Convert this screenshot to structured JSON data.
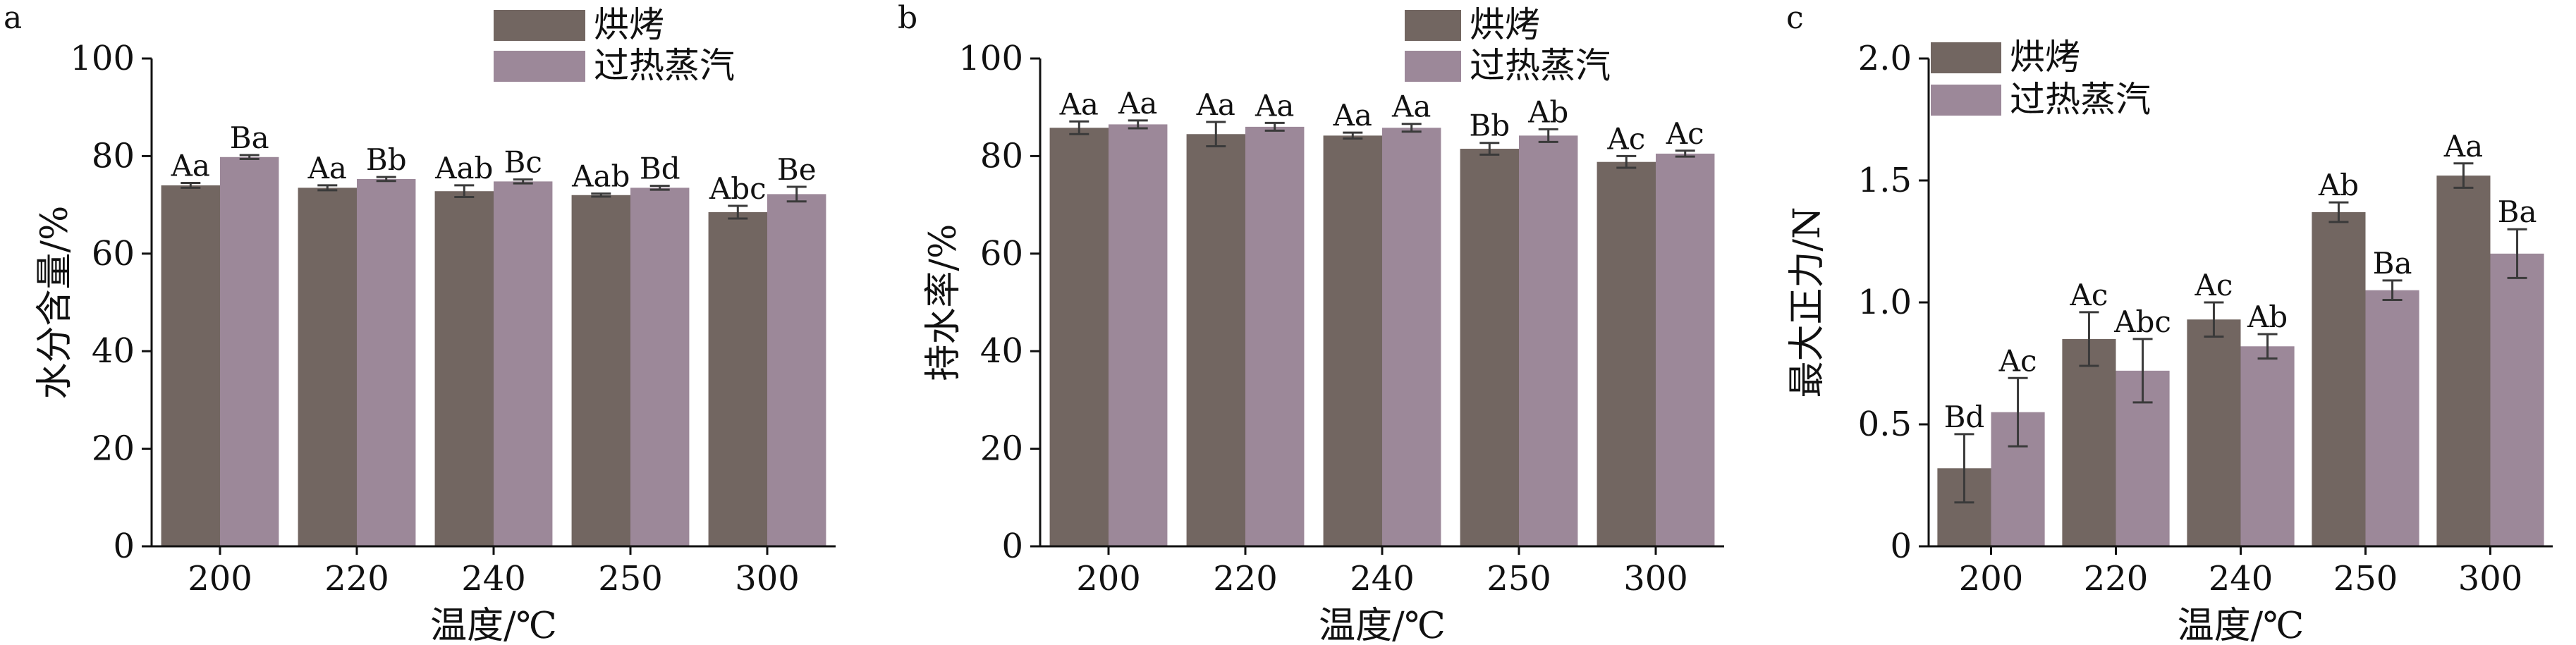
{
  "colors": {
    "bake": "#726661",
    "steam": "#9c8899",
    "axis": "#111111",
    "error": "#3a3a3a"
  },
  "chart_data": [
    {
      "panel": "a",
      "type": "bar",
      "ylabel": "水分含量/%",
      "xlabel": "温度/℃",
      "categories": [
        "200",
        "220",
        "240",
        "250",
        "300"
      ],
      "ylim": [
        0,
        100
      ],
      "yticks": [
        "0",
        "20",
        "40",
        "60",
        "80",
        "100"
      ],
      "legend_position": "top-right",
      "series": [
        {
          "name": "烘烤",
          "values": [
            74,
            73.5,
            72.8,
            72,
            68.5
          ],
          "errors": [
            0.5,
            0.5,
            1.2,
            0.3,
            1.3
          ],
          "labels": [
            "Aa",
            "Aa",
            "Aab",
            "Aab",
            "Abc"
          ]
        },
        {
          "name": "过热蒸汽",
          "values": [
            79.8,
            75.3,
            74.8,
            73.5,
            72.2
          ],
          "errors": [
            0.4,
            0.4,
            0.4,
            0.4,
            1.5
          ],
          "labels": [
            "Ba",
            "Bb",
            "Bc",
            "Bd",
            "Be"
          ]
        }
      ]
    },
    {
      "panel": "b",
      "type": "bar",
      "ylabel": "持水率/%",
      "xlabel": "温度/℃",
      "categories": [
        "200",
        "220",
        "240",
        "250",
        "300"
      ],
      "ylim": [
        0,
        100
      ],
      "yticks": [
        "0",
        "20",
        "40",
        "60",
        "80",
        "100"
      ],
      "legend_position": "top-right",
      "series": [
        {
          "name": "烘烤",
          "values": [
            85.8,
            84.5,
            84.2,
            81.5,
            78.8
          ],
          "errors": [
            1.3,
            2.5,
            0.6,
            1.2,
            1.2
          ],
          "labels": [
            "Aa",
            "Aa",
            "Aa",
            "Bb",
            "Ac"
          ]
        },
        {
          "name": "过热蒸汽",
          "values": [
            86.5,
            86,
            85.8,
            84.2,
            80.5
          ],
          "errors": [
            0.8,
            0.8,
            0.8,
            1.3,
            0.6
          ],
          "labels": [
            "Aa",
            "Aa",
            "Aa",
            "Ab",
            "Ac"
          ]
        }
      ]
    },
    {
      "panel": "c",
      "type": "bar",
      "ylabel": "最大正力/N",
      "xlabel": "温度/℃",
      "categories": [
        "200",
        "220",
        "240",
        "250",
        "300"
      ],
      "ylim": [
        0,
        2.0
      ],
      "yticks": [
        "0",
        "0.5",
        "1.0",
        "1.5",
        "2.0"
      ],
      "legend_position": "top-left",
      "series": [
        {
          "name": "烘烤",
          "values": [
            0.32,
            0.85,
            0.93,
            1.37,
            1.52
          ],
          "errors": [
            0.14,
            0.11,
            0.07,
            0.04,
            0.05
          ],
          "labels": [
            "Bd",
            "Ac",
            "Ac",
            "Ab",
            "Aa"
          ]
        },
        {
          "name": "过热蒸汽",
          "values": [
            0.55,
            0.72,
            0.82,
            1.05,
            1.2
          ],
          "errors": [
            0.14,
            0.13,
            0.05,
            0.04,
            0.1
          ],
          "labels": [
            "Ac",
            "Abc",
            "Ab",
            "Ba",
            "Ba"
          ]
        }
      ]
    }
  ]
}
